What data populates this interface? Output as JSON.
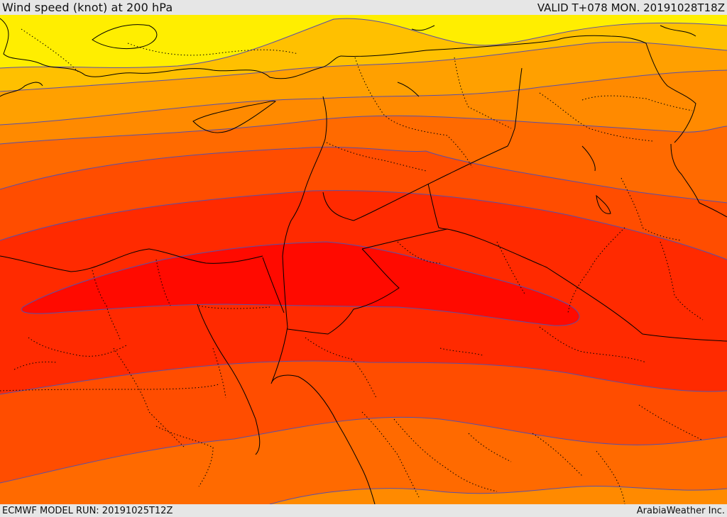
{
  "header": {
    "title": "Wind speed (knot) at 200 hPa",
    "valid": "VALID T+078 MON. 20191028T18Z"
  },
  "footer": {
    "model_run": "ECMWF MODEL RUN: 20191025T12Z",
    "credit": "ArabiaWeather Inc."
  },
  "colors": {
    "band_1": "#ffee00",
    "band_2": "#ffc000",
    "band_3": "#ffa000",
    "band_4": "#ff8a00",
    "band_5": "#ff6a00",
    "band_6": "#ff4d00",
    "band_7": "#ff2a00",
    "band_8": "#ff0a00",
    "contour": "#5a4fa8",
    "border": "#000000"
  }
}
